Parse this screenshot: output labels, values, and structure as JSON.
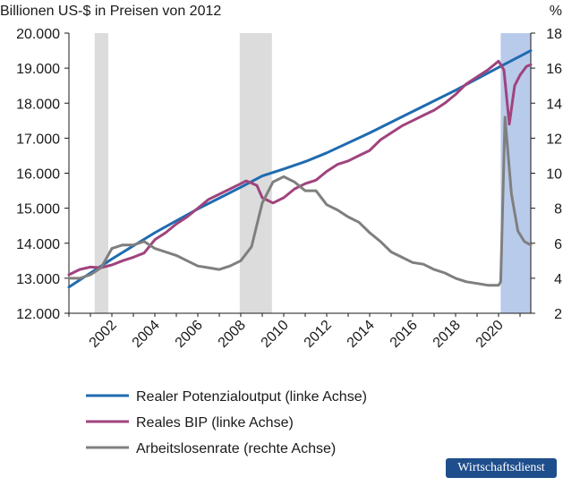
{
  "chart_data": {
    "type": "line",
    "title": "",
    "left_axis": {
      "label": "Billionen US-$ in Preisen von 2012",
      "ticks": [
        "12.000",
        "13.000",
        "14.000",
        "15.000",
        "16.000",
        "17.000",
        "18.000",
        "19.000",
        "20.000"
      ],
      "ylim": [
        12000,
        20000
      ]
    },
    "right_axis": {
      "label": "%",
      "ticks": [
        "2",
        "4",
        "6",
        "8",
        "10",
        "12",
        "14",
        "16",
        "18"
      ],
      "ylim": [
        2,
        18
      ]
    },
    "x_ticks": [
      "2002",
      "2004",
      "2006",
      "2008",
      "2010",
      "2012",
      "2014",
      "2016",
      "2018",
      "2020"
    ],
    "xlim": [
      2000.0,
      2021.5
    ],
    "recessions": [
      {
        "start": 2001.2,
        "end": 2001.83
      },
      {
        "start": 2007.95,
        "end": 2009.45
      }
    ],
    "covid_shading": {
      "start": 2020.1,
      "end": 2021.5,
      "color": "#b9cbeb"
    },
    "grid": false,
    "legend_position": "bottom",
    "series": [
      {
        "name": "Realer Potenzialoutput (linke Achse)",
        "axis": "left",
        "color": "#1f6bb0",
        "points": [
          [
            2000.0,
            12750
          ],
          [
            2002.0,
            13550
          ],
          [
            2004.0,
            14300
          ],
          [
            2006.0,
            14980
          ],
          [
            2008.0,
            15600
          ],
          [
            2009.0,
            15920
          ],
          [
            2010.0,
            16120
          ],
          [
            2011.0,
            16330
          ],
          [
            2012.0,
            16580
          ],
          [
            2014.0,
            17150
          ],
          [
            2016.0,
            17760
          ],
          [
            2018.0,
            18370
          ],
          [
            2020.0,
            19020
          ],
          [
            2021.5,
            19500
          ]
        ]
      },
      {
        "name": "Reales BIP (linke Achse)",
        "axis": "left",
        "color": "#a0437d",
        "points": [
          [
            2000.0,
            13100
          ],
          [
            2000.5,
            13250
          ],
          [
            2001.0,
            13320
          ],
          [
            2001.5,
            13300
          ],
          [
            2002.0,
            13380
          ],
          [
            2002.5,
            13500
          ],
          [
            2003.0,
            13600
          ],
          [
            2003.5,
            13720
          ],
          [
            2004.0,
            14100
          ],
          [
            2004.5,
            14300
          ],
          [
            2005.0,
            14550
          ],
          [
            2005.5,
            14750
          ],
          [
            2006.0,
            15000
          ],
          [
            2006.5,
            15250
          ],
          [
            2007.0,
            15400
          ],
          [
            2007.5,
            15550
          ],
          [
            2008.0,
            15700
          ],
          [
            2008.25,
            15780
          ],
          [
            2008.5,
            15720
          ],
          [
            2008.75,
            15650
          ],
          [
            2009.0,
            15300
          ],
          [
            2009.5,
            15150
          ],
          [
            2010.0,
            15300
          ],
          [
            2010.5,
            15550
          ],
          [
            2011.0,
            15700
          ],
          [
            2011.5,
            15800
          ],
          [
            2012.0,
            16050
          ],
          [
            2012.5,
            16250
          ],
          [
            2013.0,
            16350
          ],
          [
            2013.5,
            16500
          ],
          [
            2014.0,
            16650
          ],
          [
            2014.5,
            16950
          ],
          [
            2015.0,
            17150
          ],
          [
            2015.5,
            17350
          ],
          [
            2016.0,
            17500
          ],
          [
            2016.5,
            17650
          ],
          [
            2017.0,
            17800
          ],
          [
            2017.5,
            18000
          ],
          [
            2018.0,
            18250
          ],
          [
            2018.5,
            18550
          ],
          [
            2019.0,
            18750
          ],
          [
            2019.5,
            18950
          ],
          [
            2020.0,
            19200
          ],
          [
            2020.25,
            18950
          ],
          [
            2020.5,
            17400
          ],
          [
            2020.75,
            18500
          ],
          [
            2021.0,
            18800
          ],
          [
            2021.3,
            19050
          ],
          [
            2021.5,
            19100
          ]
        ]
      },
      {
        "name": "Arbeitslosenrate (rechte Achse)",
        "axis": "right",
        "color": "#7f7f7f",
        "points": [
          [
            2000.0,
            4.0
          ],
          [
            2000.5,
            4.0
          ],
          [
            2001.0,
            4.2
          ],
          [
            2001.5,
            4.6
          ],
          [
            2002.0,
            5.7
          ],
          [
            2002.5,
            5.9
          ],
          [
            2003.0,
            5.9
          ],
          [
            2003.5,
            6.1
          ],
          [
            2004.0,
            5.7
          ],
          [
            2004.5,
            5.5
          ],
          [
            2005.0,
            5.3
          ],
          [
            2005.5,
            5.0
          ],
          [
            2006.0,
            4.7
          ],
          [
            2006.5,
            4.6
          ],
          [
            2007.0,
            4.5
          ],
          [
            2007.5,
            4.7
          ],
          [
            2008.0,
            5.0
          ],
          [
            2008.5,
            5.8
          ],
          [
            2009.0,
            8.3
          ],
          [
            2009.5,
            9.5
          ],
          [
            2010.0,
            9.8
          ],
          [
            2010.5,
            9.5
          ],
          [
            2011.0,
            9.0
          ],
          [
            2011.5,
            9.0
          ],
          [
            2012.0,
            8.2
          ],
          [
            2012.5,
            7.9
          ],
          [
            2013.0,
            7.5
          ],
          [
            2013.5,
            7.2
          ],
          [
            2014.0,
            6.6
          ],
          [
            2014.5,
            6.1
          ],
          [
            2015.0,
            5.5
          ],
          [
            2015.5,
            5.2
          ],
          [
            2016.0,
            4.9
          ],
          [
            2016.5,
            4.8
          ],
          [
            2017.0,
            4.5
          ],
          [
            2017.5,
            4.3
          ],
          [
            2018.0,
            4.0
          ],
          [
            2018.5,
            3.8
          ],
          [
            2019.0,
            3.7
          ],
          [
            2019.5,
            3.6
          ],
          [
            2020.0,
            3.6
          ],
          [
            2020.1,
            3.8
          ],
          [
            2020.3,
            13.2
          ],
          [
            2020.6,
            8.8
          ],
          [
            2020.9,
            6.7
          ],
          [
            2021.2,
            6.1
          ],
          [
            2021.5,
            5.9
          ]
        ]
      }
    ]
  },
  "footer": {
    "badge": "Wirtschaftsdienst"
  }
}
